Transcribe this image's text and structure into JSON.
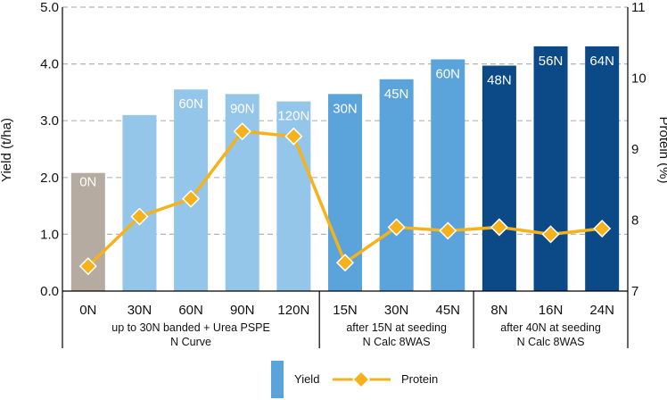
{
  "chart_data": {
    "type": "bar",
    "categories": [
      "0N",
      "30N",
      "60N",
      "90N",
      "120N",
      "15N",
      "30N",
      "45N",
      "8N",
      "16N",
      "24N"
    ],
    "groups": [
      {
        "lines": [
          "up to 30N banded + Urea PSPE",
          "N Curve"
        ],
        "start": 0,
        "end": 4
      },
      {
        "lines": [
          "after 15N at seeding",
          "N Calc 8WAS"
        ],
        "start": 5,
        "end": 7
      },
      {
        "lines": [
          "after 40N at seeding",
          "N Calc 8WAS"
        ],
        "start": 8,
        "end": 10
      }
    ],
    "series": [
      {
        "name": "Yield",
        "type": "bar",
        "axis": "left",
        "values": [
          2.08,
          3.1,
          3.55,
          3.47,
          3.34,
          3.47,
          3.73,
          4.08,
          3.97,
          4.31,
          4.31
        ],
        "bar_labels": [
          "0N",
          "",
          "60N",
          "90N",
          "120N",
          "30N",
          "45N",
          "60N",
          "48N",
          "56N",
          "64N"
        ],
        "colors": [
          "#b5aba0",
          "#94c6ea",
          "#94c6ea",
          "#94c6ea",
          "#94c6ea",
          "#5aa3db",
          "#5aa3db",
          "#5aa3db",
          "#0b4a86",
          "#0b4a86",
          "#0b4a86"
        ]
      },
      {
        "name": "Protein",
        "type": "line",
        "axis": "right",
        "values": [
          7.35,
          8.05,
          8.3,
          9.25,
          9.18,
          7.4,
          7.9,
          7.85,
          7.9,
          7.8,
          7.88
        ],
        "color": "#f5b21b",
        "marker": "diamond"
      }
    ],
    "y_left": {
      "label": "Yield (t/ha)",
      "min": 0,
      "max": 5,
      "ticks": [
        "0.0",
        "1.0",
        "2.0",
        "3.0",
        "4.0",
        "5.0"
      ]
    },
    "y_right": {
      "label": "Protein (%)",
      "min": 7,
      "max": 11,
      "ticks": [
        "7",
        "8",
        "9",
        "10",
        "11"
      ]
    },
    "grid": true,
    "legend_position": "bottom-center"
  }
}
